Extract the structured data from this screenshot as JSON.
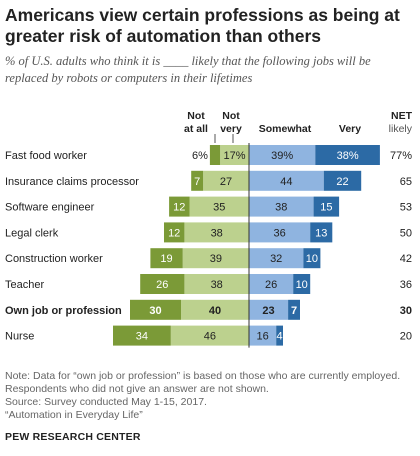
{
  "title": "Americans view certain professions as being at greater risk of automation than others",
  "subtitle": "% of U.S. adults who think it is ____ likely that the following jobs will be replaced by robots or computers in their lifetimes",
  "colors": {
    "not_at_all": "#7b9a37",
    "not_very": "#bcd18e",
    "somewhat": "#8fb4e0",
    "very": "#2c6aa5",
    "divider": "#333333"
  },
  "chart_data": {
    "type": "bar",
    "stacked": "diverging",
    "columns": {
      "not_at_all": "Not at all",
      "not_very": "Not very",
      "somewhat": "Somewhat",
      "very": "Very",
      "net": "NET likely"
    },
    "categories": [
      "Fast food worker",
      "Insurance claims processor",
      "Software engineer",
      "Legal clerk",
      "Construction worker",
      "Teacher",
      "Own job or profession",
      "Nurse"
    ],
    "bold_categories": [
      "Own job or profession"
    ],
    "series": [
      {
        "name": "Not at all",
        "values": [
          6,
          7,
          12,
          12,
          19,
          26,
          30,
          34
        ]
      },
      {
        "name": "Not very",
        "values": [
          17,
          27,
          35,
          38,
          39,
          38,
          40,
          46
        ]
      },
      {
        "name": "Somewhat",
        "values": [
          39,
          44,
          38,
          36,
          32,
          26,
          23,
          16
        ]
      },
      {
        "name": "Very",
        "values": [
          38,
          22,
          15,
          13,
          10,
          10,
          7,
          4
        ]
      }
    ],
    "net_likely": [
      77,
      65,
      53,
      50,
      42,
      36,
      30,
      20
    ],
    "value_labels": {
      "not_at_all": [
        "6%",
        "7",
        "12",
        "12",
        "19",
        "26",
        "30",
        "34"
      ],
      "not_very": [
        "17%",
        "27",
        "35",
        "38",
        "39",
        "38",
        "40",
        "46"
      ],
      "somewhat": [
        "39%",
        "44",
        "38",
        "36",
        "32",
        "26",
        "23",
        "16"
      ],
      "very": [
        "38%",
        "22",
        "15",
        "13",
        "10",
        "10",
        "7",
        "4"
      ],
      "net": [
        "77%",
        "65",
        "53",
        "50",
        "42",
        "36",
        "30",
        "20"
      ]
    }
  },
  "notes": [
    "Note: Data for “own job or profession” is based on those who are currently employed.",
    "Respondents who did not give an answer are not shown.",
    "Source: Survey conducted May 1-15, 2017.",
    "“Automation in Everyday Life”"
  ],
  "source_brand": "PEW RESEARCH CENTER"
}
